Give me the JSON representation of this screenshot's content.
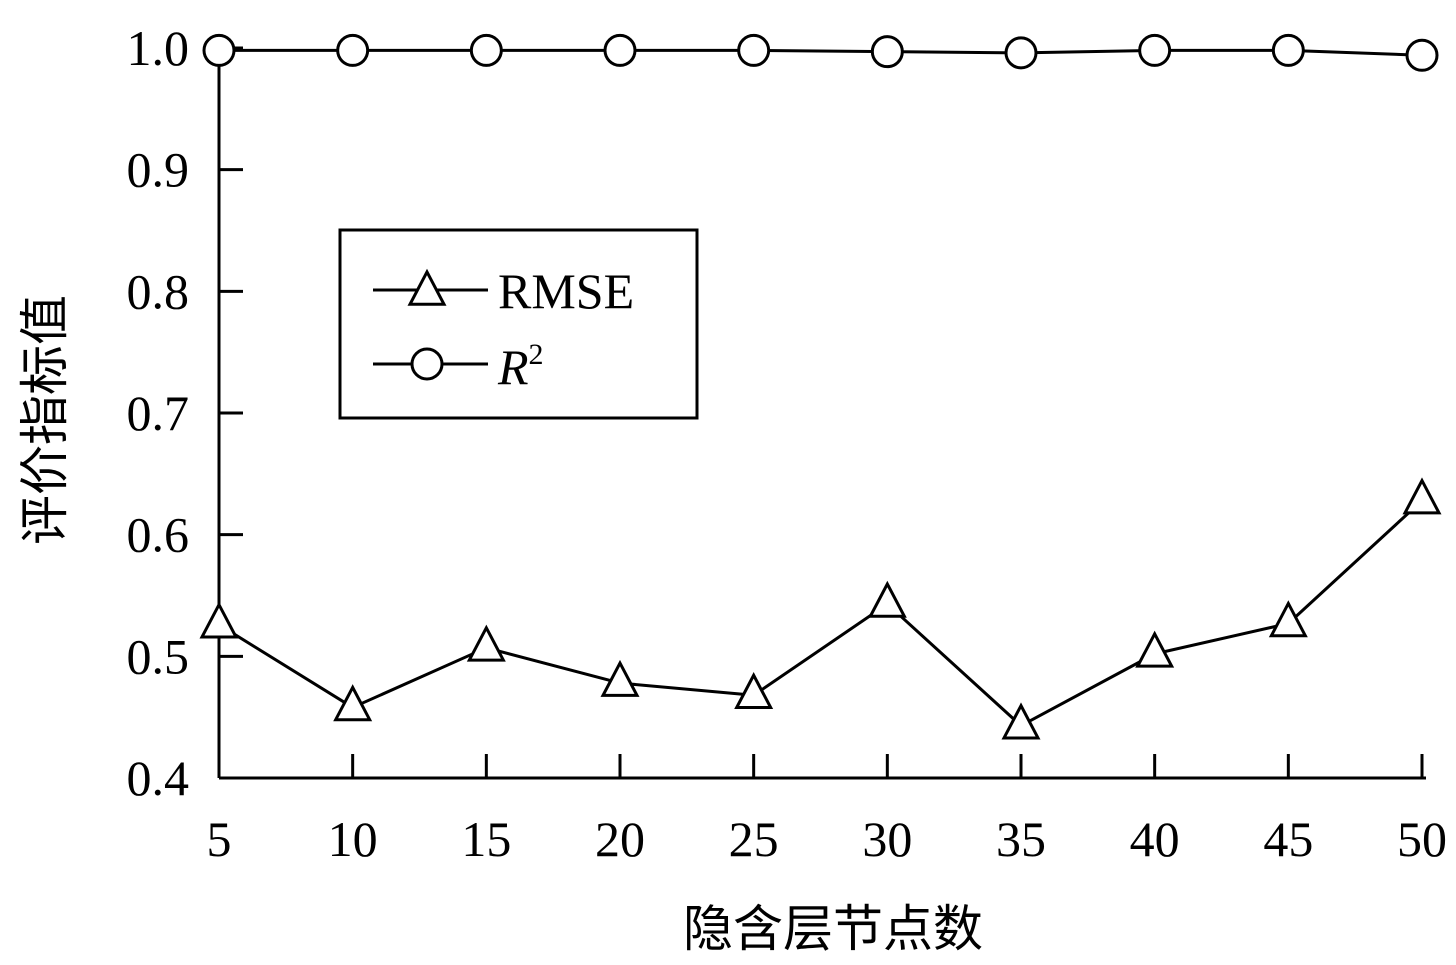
{
  "chart_data": {
    "type": "line",
    "title": "",
    "xlabel": "隐含层节点数",
    "ylabel": "评价指标值",
    "x": [
      5,
      10,
      15,
      20,
      25,
      30,
      35,
      40,
      45,
      50
    ],
    "x_ticks": [
      "5",
      "10",
      "15",
      "20",
      "25",
      "30",
      "35",
      "40",
      "45",
      "50"
    ],
    "y_ticks": [
      "0.4",
      "0.5",
      "0.6",
      "0.7",
      "0.8",
      "0.9",
      "1.0"
    ],
    "ylim": [
      0.4,
      1.0
    ],
    "grid": false,
    "legend_position": "upper-left",
    "series": [
      {
        "name": "RMSE",
        "marker": "triangle",
        "values": [
          0.526,
          0.458,
          0.507,
          0.478,
          0.468,
          0.543,
          0.443,
          0.502,
          0.527,
          0.628
        ]
      },
      {
        "name": "R",
        "name_superscript": "2",
        "marker": "circle",
        "values": [
          0.998,
          0.998,
          0.998,
          0.998,
          0.998,
          0.997,
          0.996,
          0.998,
          0.998,
          0.994
        ]
      }
    ]
  }
}
